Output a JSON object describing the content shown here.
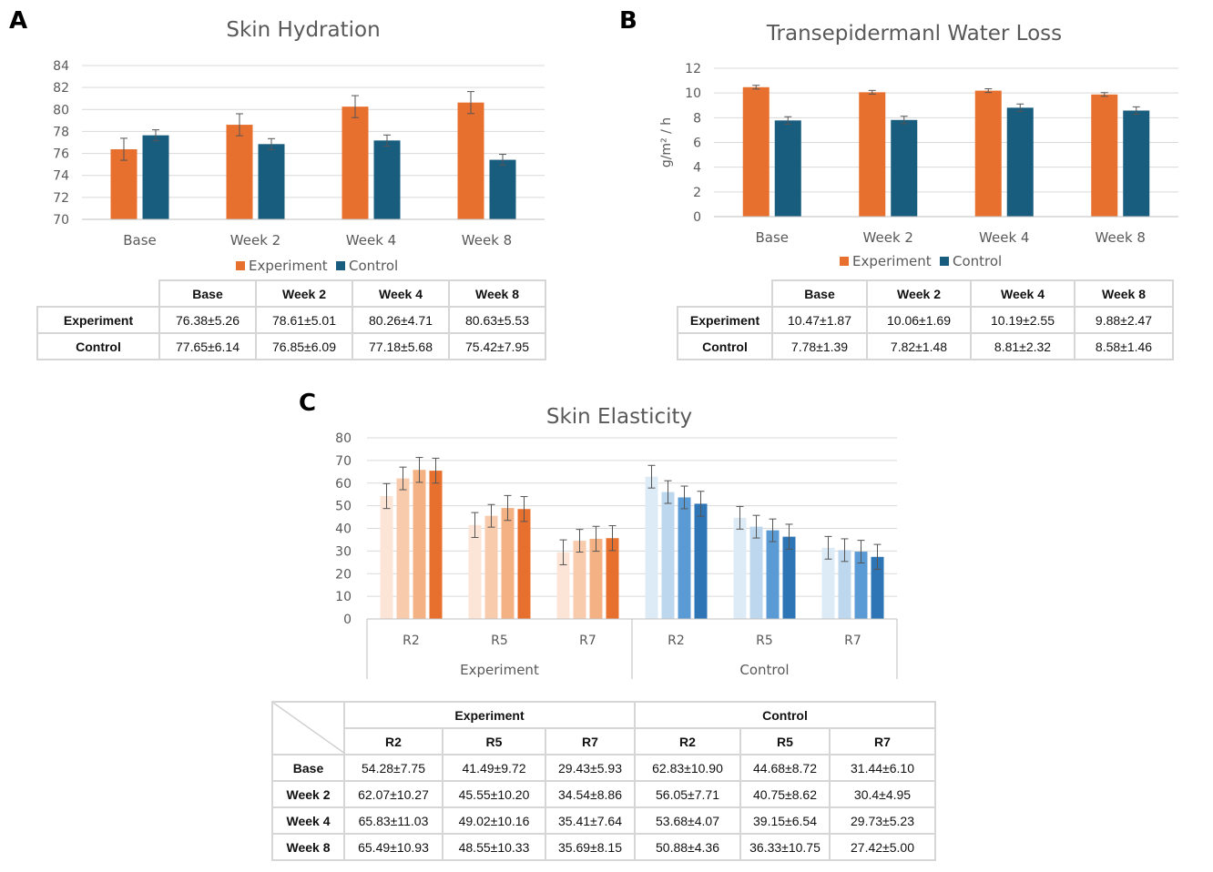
{
  "panels": {
    "a": {
      "letter": "A",
      "chart_data": {
        "type": "bar",
        "title": "Skin Hydration",
        "ylabel": "",
        "categories": [
          "Base",
          "Week 2",
          "Week 4",
          "Week 8"
        ],
        "ylim": [
          70,
          84
        ],
        "yticks": [
          70,
          72,
          74,
          76,
          78,
          80,
          82,
          84
        ],
        "grid": true,
        "legend": "bottom",
        "series": [
          {
            "name": "Experiment",
            "color": "#E8702F",
            "values": [
              76.38,
              78.61,
              80.26,
              80.63
            ],
            "errors": [
              1.0,
              1.0,
              1.0,
              1.0
            ]
          },
          {
            "name": "Control",
            "color": "#185C7E",
            "values": [
              77.65,
              76.85,
              77.18,
              75.42
            ],
            "errors": [
              0.5,
              0.5,
              0.5,
              0.5
            ]
          }
        ]
      },
      "table": {
        "columns": [
          "Base",
          "Week 2",
          "Week 4",
          "Week 8"
        ],
        "rows": [
          {
            "label": "Experiment",
            "cells": [
              "76.38±5.26",
              "78.61±5.01",
              "80.26±4.71",
              "80.63±5.53"
            ]
          },
          {
            "label": "Control",
            "cells": [
              "77.65±6.14",
              "76.85±6.09",
              "77.18±5.68",
              "75.42±7.95"
            ]
          }
        ]
      }
    },
    "b": {
      "letter": "B",
      "chart_data": {
        "type": "bar",
        "title": "Transepidermanl Water Loss",
        "ylabel": "g/m² / h",
        "categories": [
          "Base",
          "Week 2",
          "Week 4",
          "Week 8"
        ],
        "ylim": [
          0,
          12
        ],
        "yticks": [
          0,
          2,
          4,
          6,
          8,
          10,
          12
        ],
        "grid": true,
        "legend": "bottom",
        "series": [
          {
            "name": "Experiment",
            "color": "#E8702F",
            "values": [
              10.47,
              10.06,
              10.19,
              9.88
            ],
            "errors": [
              0.15,
              0.15,
              0.15,
              0.15
            ]
          },
          {
            "name": "Control",
            "color": "#185C7E",
            "values": [
              7.78,
              7.82,
              8.81,
              8.58
            ],
            "errors": [
              0.3,
              0.3,
              0.3,
              0.3
            ]
          }
        ]
      },
      "table": {
        "columns": [
          "Base",
          "Week 2",
          "Week 4",
          "Week 8"
        ],
        "rows": [
          {
            "label": "Experiment",
            "cells": [
              "10.47±1.87",
              "10.06±1.69",
              "10.19±2.55",
              "9.88±2.47"
            ]
          },
          {
            "label": "Control",
            "cells": [
              "7.78±1.39",
              "7.82±1.48",
              "8.81±2.32",
              "8.58±1.46"
            ]
          }
        ]
      }
    },
    "c": {
      "letter": "C",
      "chart_data": {
        "type": "bar",
        "title": "Skin Elasticity",
        "ylabel": "",
        "ylim": [
          0,
          80
        ],
        "yticks": [
          0,
          10,
          20,
          30,
          40,
          50,
          60,
          70,
          80
        ],
        "grid": true,
        "legend": "none",
        "groups": [
          {
            "name": "Experiment",
            "colors": [
              "#FCE4D6",
              "#F8CBAD",
              "#F4B183",
              "#E8702F"
            ],
            "categories": [
              "R2",
              "R5",
              "R7"
            ],
            "series": [
              {
                "values": [
                  54.28,
                  41.49,
                  29.43
                ],
                "errors": [
                  5.5,
                  5.5,
                  5.5
                ]
              },
              {
                "values": [
                  62.07,
                  45.55,
                  34.54
                ],
                "errors": [
                  5.0,
                  5.0,
                  5.0
                ]
              },
              {
                "values": [
                  65.83,
                  49.02,
                  35.41
                ],
                "errors": [
                  5.5,
                  5.5,
                  5.5
                ]
              },
              {
                "values": [
                  65.49,
                  48.55,
                  35.69
                ],
                "errors": [
                  5.5,
                  5.5,
                  5.5
                ]
              }
            ]
          },
          {
            "name": "Control",
            "colors": [
              "#DDEBF7",
              "#BDD7EE",
              "#5B9BD5",
              "#2E75B6"
            ],
            "categories": [
              "R2",
              "R5",
              "R7"
            ],
            "series": [
              {
                "values": [
                  62.83,
                  44.68,
                  31.44
                ],
                "errors": [
                  5.0,
                  5.0,
                  5.0
                ]
              },
              {
                "values": [
                  56.05,
                  40.75,
                  30.4
                ],
                "errors": [
                  5.0,
                  5.0,
                  5.0
                ]
              },
              {
                "values": [
                  53.68,
                  39.15,
                  29.73
                ],
                "errors": [
                  5.0,
                  5.0,
                  5.0
                ]
              },
              {
                "values": [
                  50.88,
                  36.33,
                  27.42
                ],
                "errors": [
                  5.5,
                  5.5,
                  5.5
                ]
              }
            ]
          }
        ]
      },
      "table": {
        "group_headers": [
          "Experiment",
          "Control"
        ],
        "columns": [
          "R2",
          "R5",
          "R7",
          "R2",
          "R5",
          "R7"
        ],
        "rows": [
          {
            "label": "Base",
            "cells": [
              "54.28±7.75",
              "41.49±9.72",
              "29.43±5.93",
              "62.83±10.90",
              "44.68±8.72",
              "31.44±6.10"
            ]
          },
          {
            "label": "Week 2",
            "cells": [
              "62.07±10.27",
              "45.55±10.20",
              "34.54±8.86",
              "56.05±7.71",
              "40.75±8.62",
              "30.4±4.95"
            ]
          },
          {
            "label": "Week 4",
            "cells": [
              "65.83±11.03",
              "49.02±10.16",
              "35.41±7.64",
              "53.68±4.07",
              "39.15±6.54",
              "29.73±5.23"
            ]
          },
          {
            "label": "Week 8",
            "cells": [
              "65.49±10.93",
              "48.55±10.33",
              "35.69±8.15",
              "50.88±4.36",
              "36.33±10.75",
              "27.42±5.00"
            ]
          }
        ]
      }
    }
  }
}
